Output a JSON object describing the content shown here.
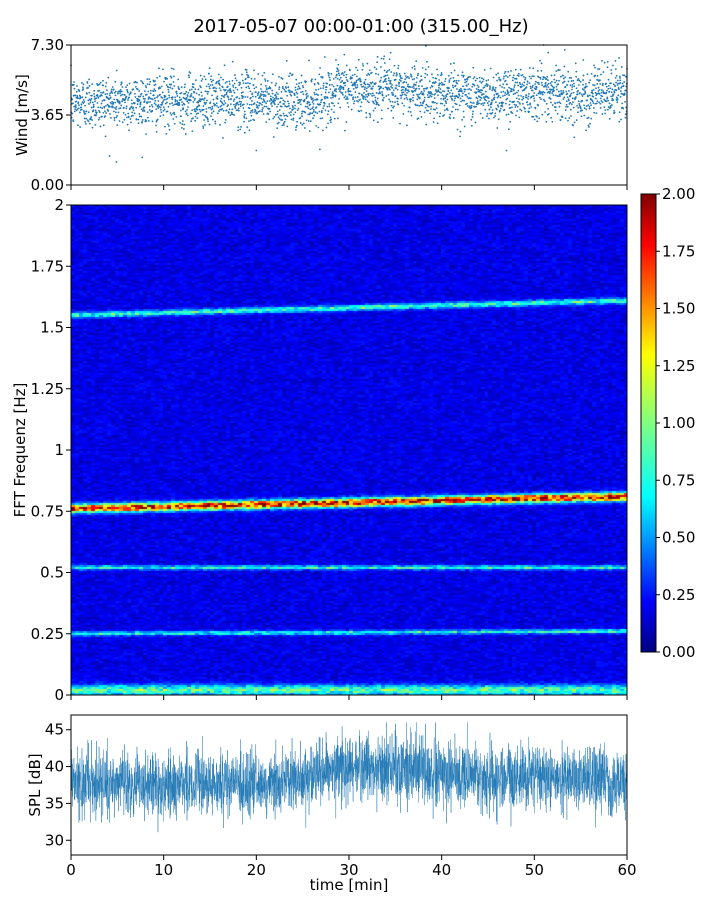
{
  "figure": {
    "title": "2017-05-07 00:00-01:00 (315.00_Hz)"
  },
  "chart_data": [
    {
      "id": "wind",
      "type": "scatter",
      "ylabel": "Wind [m/s]",
      "xlim": [
        0,
        60
      ],
      "ylim": [
        0,
        7.3
      ],
      "yticks": [
        0,
        3.65,
        7.3
      ],
      "ytick_labels": [
        "0.00",
        "3.65",
        "7.30"
      ],
      "color": "#1f77b4",
      "approx_points": 2800,
      "x_unit": "min",
      "trend": [
        [
          0,
          4.3
        ],
        [
          10,
          4.4
        ],
        [
          20,
          4.5
        ],
        [
          25,
          4.3
        ],
        [
          30,
          5.0
        ],
        [
          35,
          5.0
        ],
        [
          40,
          4.8
        ],
        [
          45,
          4.6
        ],
        [
          50,
          5.0
        ],
        [
          55,
          4.7
        ],
        [
          60,
          4.9
        ]
      ],
      "spread_sd": 0.7,
      "outliers": [
        [
          4.9,
          1.2
        ],
        [
          51,
          7.3
        ],
        [
          51.5,
          6.9
        ],
        [
          29.5,
          6.8
        ],
        [
          34.5,
          6.9
        ],
        [
          20,
          1.8
        ],
        [
          47,
          1.8
        ]
      ]
    },
    {
      "id": "spectrogram",
      "type": "heatmap",
      "ylabel": "FFT Frequenz [Hz]",
      "xlim": [
        0,
        60
      ],
      "ylim": [
        0,
        2
      ],
      "yticks": [
        0,
        0.25,
        0.5,
        0.75,
        1,
        1.25,
        1.5,
        1.75,
        2
      ],
      "ytick_labels": [
        "0",
        "0.25",
        "0.5",
        "0.75",
        "1",
        "1.25",
        "1.5",
        "1.75",
        "2"
      ],
      "colormap": "jet",
      "vmin": 0,
      "vmax": 2,
      "background_level": 0.2,
      "bands": [
        {
          "freq_start": 0.76,
          "freq_end": 0.81,
          "amplitude": 1.8,
          "width_hz": 0.012
        },
        {
          "freq_start": 1.55,
          "freq_end": 1.61,
          "amplitude": 0.75,
          "width_hz": 0.008
        },
        {
          "freq_start": 0.52,
          "freq_end": 0.52,
          "amplitude": 0.7,
          "width_hz": 0.006
        },
        {
          "freq_start": 0.25,
          "freq_end": 0.26,
          "amplitude": 0.7,
          "width_hz": 0.006
        },
        {
          "freq_start": 0.02,
          "freq_end": 0.02,
          "amplitude": 0.8,
          "width_hz": 0.015
        }
      ],
      "colorbar": {
        "ticks": [
          0,
          0.25,
          0.5,
          0.75,
          1.0,
          1.25,
          1.5,
          1.75,
          2.0
        ],
        "tick_labels": [
          "0.00",
          "0.25",
          "0.50",
          "0.75",
          "1.00",
          "1.25",
          "1.50",
          "1.75",
          "2.00"
        ]
      }
    },
    {
      "id": "spl",
      "type": "line",
      "xlabel": "time [min]",
      "ylabel": "SPL [dB]",
      "xlim": [
        0,
        60
      ],
      "ylim": [
        28,
        47
      ],
      "xticks": [
        0,
        10,
        20,
        30,
        40,
        50,
        60
      ],
      "xtick_labels": [
        "0",
        "10",
        "20",
        "30",
        "40",
        "50",
        "60"
      ],
      "yticks": [
        30,
        35,
        40,
        45
      ],
      "ytick_labels": [
        "30",
        "35",
        "40",
        "45"
      ],
      "color": "#1f77b4",
      "trend": [
        [
          0,
          37.8
        ],
        [
          10,
          37.5
        ],
        [
          20,
          37.5
        ],
        [
          25,
          38.5
        ],
        [
          30,
          40.0
        ],
        [
          35,
          39.8
        ],
        [
          40,
          39.0
        ],
        [
          45,
          38.2
        ],
        [
          50,
          38.8
        ],
        [
          55,
          38.5
        ],
        [
          60,
          37.8
        ]
      ],
      "spread_sd": 2.2,
      "envelope_extremes": {
        "min": 29.0,
        "max": 46.0
      }
    }
  ]
}
